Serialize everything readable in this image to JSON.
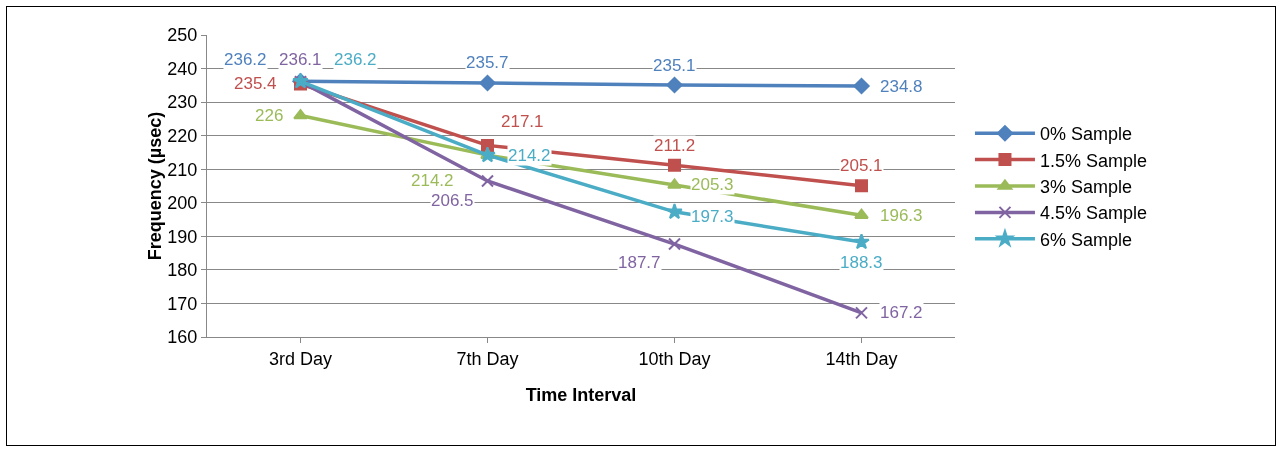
{
  "chart_data": {
    "type": "line",
    "xlabel": "Time Interval",
    "ylabel": "Frequency (µsec)",
    "categories": [
      "3rd Day",
      "7th Day",
      "10th Day",
      "14th Day"
    ],
    "series": [
      {
        "name": "0% Sample",
        "color": "#4f81bd",
        "marker": "diamond",
        "values": [
          236.2,
          235.7,
          235.1,
          234.8
        ]
      },
      {
        "name": "1.5% Sample",
        "color": "#c0504d",
        "marker": "square",
        "values": [
          235.4,
          217.1,
          211.2,
          205.1
        ]
      },
      {
        "name": "3% Sample",
        "color": "#9bbb59",
        "marker": "triangle",
        "values": [
          226,
          214.2,
          205.3,
          196.3
        ]
      },
      {
        "name": "4.5% Sample",
        "color": "#8064a2",
        "marker": "cross",
        "values": [
          236.1,
          206.5,
          187.7,
          167.2
        ]
      },
      {
        "name": "6% Sample",
        "color": "#4bacc6",
        "marker": "star",
        "values": [
          236.2,
          214.2,
          197.3,
          188.3
        ]
      }
    ],
    "ylim": [
      160,
      250
    ],
    "yticks": [
      160,
      170,
      180,
      190,
      200,
      210,
      220,
      230,
      240,
      250
    ],
    "grid": "y",
    "legend": "right",
    "data_labels": true,
    "line_style": "solid"
  }
}
